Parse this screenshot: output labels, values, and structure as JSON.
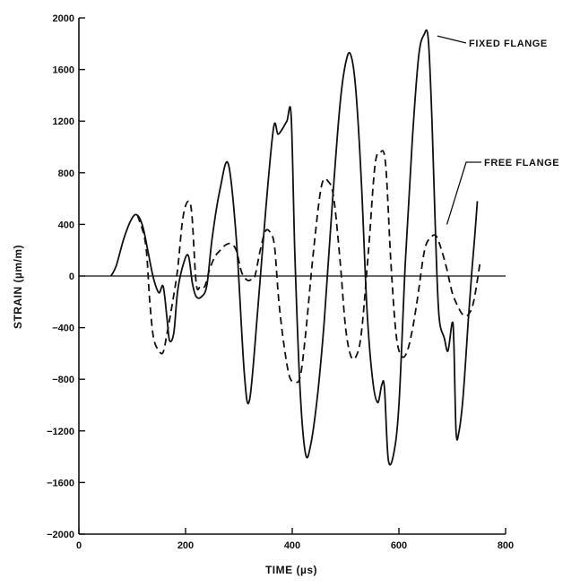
{
  "chart_data": {
    "type": "line",
    "xlabel": "TIME (µs)",
    "ylabel": "STRAIN (µm/m)",
    "xlim": [
      0,
      800
    ],
    "ylim": [
      -2000,
      2000
    ],
    "xticks": [
      0,
      200,
      400,
      600,
      800
    ],
    "yticks": [
      2000,
      1600,
      1200,
      800,
      400,
      0,
      -400,
      -800,
      -1200,
      -1600,
      -2000
    ],
    "grid": false,
    "zero_line": true,
    "series": [
      {
        "name": "FIXED FLANGE",
        "style": "solid",
        "color": "#111111",
        "x": [
          60,
          70,
          85,
          100,
          110,
          120,
          130,
          140,
          150,
          158,
          165,
          170,
          178,
          185,
          195,
          205,
          213,
          220,
          230,
          240,
          250,
          265,
          280,
          295,
          310,
          320,
          335,
          350,
          365,
          373,
          380,
          390,
          398,
          405,
          415,
          425,
          435,
          448,
          460,
          475,
          490,
          503,
          512,
          520,
          530,
          540,
          550,
          560,
          568,
          573,
          580,
          590,
          600,
          612,
          625,
          637,
          647,
          655,
          662,
          668,
          675,
          685,
          692,
          700,
          703,
          707,
          712,
          720,
          730,
          737,
          742,
          747
        ],
        "y": [
          0,
          80,
          300,
          450,
          470,
          380,
          180,
          -20,
          -130,
          -80,
          -320,
          -500,
          -440,
          -120,
          80,
          160,
          -60,
          -160,
          -160,
          -70,
          300,
          680,
          870,
          300,
          -750,
          -960,
          -280,
          500,
          1150,
          1100,
          1130,
          1200,
          1240,
          150,
          -900,
          -1380,
          -1300,
          -900,
          -350,
          550,
          1350,
          1700,
          1680,
          1400,
          700,
          -250,
          -780,
          -980,
          -840,
          -870,
          -1420,
          -1380,
          -1000,
          100,
          1050,
          1700,
          1870,
          1840,
          1200,
          400,
          -300,
          -480,
          -580,
          -360,
          -520,
          -1200,
          -1220,
          -950,
          -350,
          50,
          300,
          580
        ]
      },
      {
        "name": "FREE FLANGE",
        "style": "dashed",
        "color": "#111111",
        "x": [
          110,
          125,
          133,
          140,
          150,
          158,
          165,
          175,
          185,
          195,
          205,
          212,
          220,
          228,
          236,
          245,
          255,
          265,
          275,
          285,
          295,
          305,
          315,
          322,
          330,
          340,
          350,
          360,
          367,
          375,
          385,
          395,
          405,
          415,
          425,
          440,
          455,
          468,
          478,
          490,
          500,
          510,
          520,
          530,
          543,
          555,
          565,
          575,
          585,
          595,
          605,
          615,
          625,
          635,
          648,
          660,
          670,
          680,
          690,
          700,
          710,
          720,
          730,
          740,
          752
        ],
        "y": [
          470,
          250,
          -200,
          -480,
          -580,
          -590,
          -450,
          -220,
          50,
          450,
          580,
          470,
          -60,
          -80,
          -80,
          50,
          150,
          200,
          240,
          250,
          200,
          30,
          -30,
          -30,
          0,
          200,
          350,
          330,
          220,
          -200,
          -550,
          -780,
          -820,
          -780,
          -450,
          200,
          700,
          730,
          600,
          100,
          -400,
          -620,
          -620,
          -430,
          200,
          850,
          960,
          870,
          100,
          -460,
          -620,
          -590,
          -420,
          -170,
          200,
          300,
          310,
          200,
          50,
          -130,
          -230,
          -300,
          -300,
          -200,
          100
        ]
      }
    ],
    "annotations": [
      "FIXED FLANGE",
      "FREE FLANGE"
    ]
  }
}
